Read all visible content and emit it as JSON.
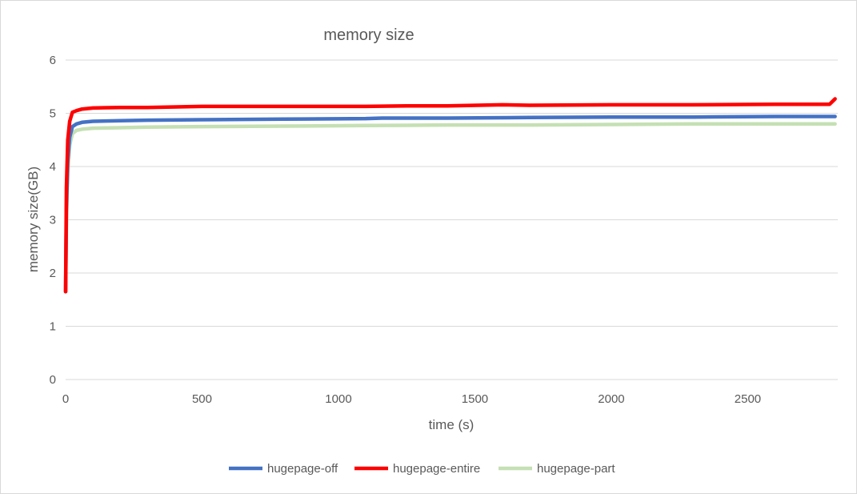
{
  "chart_data": {
    "type": "line",
    "title": "memory size",
    "xlabel": "time (s)",
    "ylabel": "memory size(GB)",
    "xlim": [
      0,
      2830
    ],
    "ylim": [
      0,
      6
    ],
    "x_ticks": [
      "0",
      "500",
      "1000",
      "1500",
      "2000",
      "2500"
    ],
    "y_ticks": [
      "0",
      "1",
      "2",
      "3",
      "4",
      "5",
      "6"
    ],
    "grid": "horizontal",
    "legend_position": "bottom",
    "series": [
      {
        "name": "hugepage-off",
        "color": "#4472c4",
        "points": [
          [
            0,
            1.65
          ],
          [
            3,
            3.2
          ],
          [
            8,
            4.1
          ],
          [
            15,
            4.55
          ],
          [
            25,
            4.75
          ],
          [
            40,
            4.8
          ],
          [
            60,
            4.83
          ],
          [
            100,
            4.85
          ],
          [
            200,
            4.86
          ],
          [
            300,
            4.87
          ],
          [
            500,
            4.88
          ],
          [
            800,
            4.89
          ],
          [
            1100,
            4.9
          ],
          [
            1160,
            4.91
          ],
          [
            1400,
            4.91
          ],
          [
            1700,
            4.92
          ],
          [
            2000,
            4.93
          ],
          [
            2300,
            4.93
          ],
          [
            2600,
            4.94
          ],
          [
            2820,
            4.94
          ]
        ]
      },
      {
        "name": "hugepage-entire",
        "color": "#ff0000",
        "points": [
          [
            0,
            1.65
          ],
          [
            3,
            3.6
          ],
          [
            8,
            4.5
          ],
          [
            15,
            4.85
          ],
          [
            25,
            5.02
          ],
          [
            40,
            5.05
          ],
          [
            60,
            5.08
          ],
          [
            100,
            5.1
          ],
          [
            200,
            5.11
          ],
          [
            300,
            5.11
          ],
          [
            500,
            5.13
          ],
          [
            800,
            5.13
          ],
          [
            1100,
            5.13
          ],
          [
            1250,
            5.14
          ],
          [
            1400,
            5.14
          ],
          [
            1600,
            5.16
          ],
          [
            1700,
            5.15
          ],
          [
            2000,
            5.16
          ],
          [
            2300,
            5.16
          ],
          [
            2600,
            5.17
          ],
          [
            2800,
            5.17
          ],
          [
            2820,
            5.27
          ]
        ]
      },
      {
        "name": "hugepage-part",
        "color": "#c5e0b4",
        "points": [
          [
            0,
            1.65
          ],
          [
            3,
            3.0
          ],
          [
            8,
            3.9
          ],
          [
            15,
            4.4
          ],
          [
            25,
            4.62
          ],
          [
            40,
            4.68
          ],
          [
            60,
            4.7
          ],
          [
            100,
            4.72
          ],
          [
            200,
            4.73
          ],
          [
            300,
            4.74
          ],
          [
            500,
            4.75
          ],
          [
            800,
            4.76
          ],
          [
            1100,
            4.77
          ],
          [
            1400,
            4.78
          ],
          [
            1700,
            4.78
          ],
          [
            2000,
            4.79
          ],
          [
            2300,
            4.8
          ],
          [
            2600,
            4.8
          ],
          [
            2820,
            4.8
          ]
        ]
      }
    ]
  }
}
